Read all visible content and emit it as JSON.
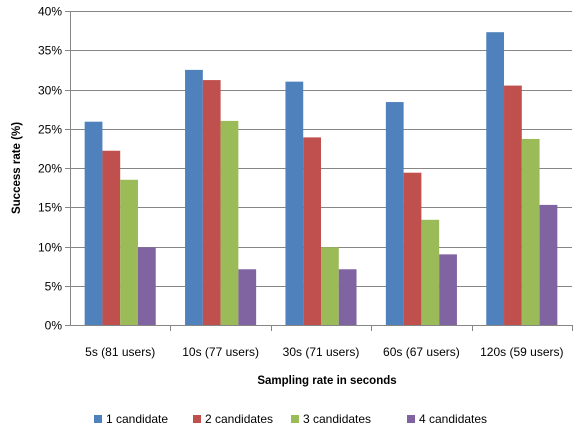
{
  "chart_data": {
    "type": "bar",
    "title": "",
    "xlabel": "Sampling rate in seconds",
    "ylabel": "Success rate (%)",
    "ylim": [
      0,
      40
    ],
    "y_ticks": [
      "0%",
      "5%",
      "10%",
      "15%",
      "20%",
      "25%",
      "30%",
      "35%",
      "40%"
    ],
    "grid": "horizontal",
    "legend_position": "bottom",
    "categories": [
      "5s (81 users)",
      "10s (77 users)",
      "30s (71 users)",
      "60s (67 users)",
      "120s (59 users)"
    ],
    "series": [
      {
        "name": "1 candidate",
        "color": "#4F81BD",
        "values": [
          25.9,
          32.5,
          31.0,
          28.4,
          37.3
        ]
      },
      {
        "name": "2 candidates",
        "color": "#C0504D",
        "values": [
          22.2,
          31.2,
          23.9,
          19.4,
          30.5
        ]
      },
      {
        "name": "3 candidates",
        "color": "#9BBB59",
        "values": [
          18.5,
          26.0,
          9.9,
          13.4,
          23.7
        ]
      },
      {
        "name": "4 candidates",
        "color": "#8064A2",
        "values": [
          9.9,
          7.1,
          7.1,
          9.0,
          15.3
        ]
      }
    ]
  }
}
